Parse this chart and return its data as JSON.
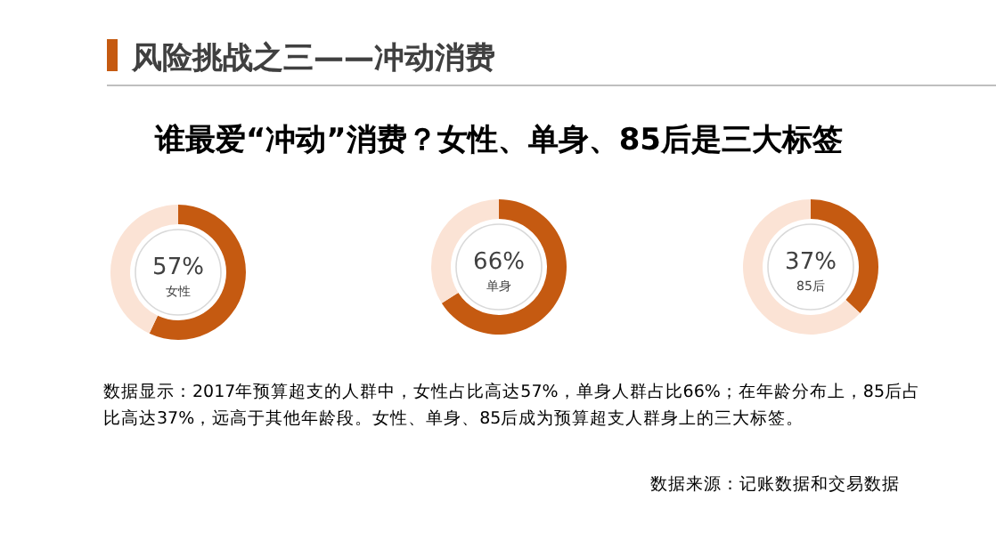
{
  "chart_data": [
    {
      "type": "other",
      "title": "风险挑战之三——冲动消费",
      "subtitle": "谁最爱“冲动”消费？女性、单身、85后是三大标签"
    },
    {
      "type": "donut",
      "categories": [
        "女性",
        null
      ],
      "values": [
        57,
        43
      ],
      "colors": [
        "#c55a11",
        "#fbe3d5"
      ],
      "value_labels": [
        "57%",
        null
      ]
    },
    {
      "type": "donut",
      "categories": [
        "单身",
        null
      ],
      "values": [
        66,
        34
      ],
      "colors": [
        "#c55a11",
        "#fbe3d5"
      ],
      "value_labels": [
        "66%",
        null
      ]
    },
    {
      "type": "donut",
      "categories": [
        "85后",
        null
      ],
      "values": [
        37,
        63
      ],
      "colors": [
        "#c55a11",
        "#fbe3d5"
      ],
      "value_labels": [
        "37%",
        null
      ]
    },
    {
      "type": "other",
      "annotations": [
        "数据显示：2017年预算超支的人群中，女性占比高达57%，单身人群占比66%；在年龄分布上，85后占比高达37%，远高于其他年龄段。女性、单身、85后成为预算超支人群身上的三大标签。",
        "数据来源：记账数据和交易数据"
      ]
    }
  ]
}
